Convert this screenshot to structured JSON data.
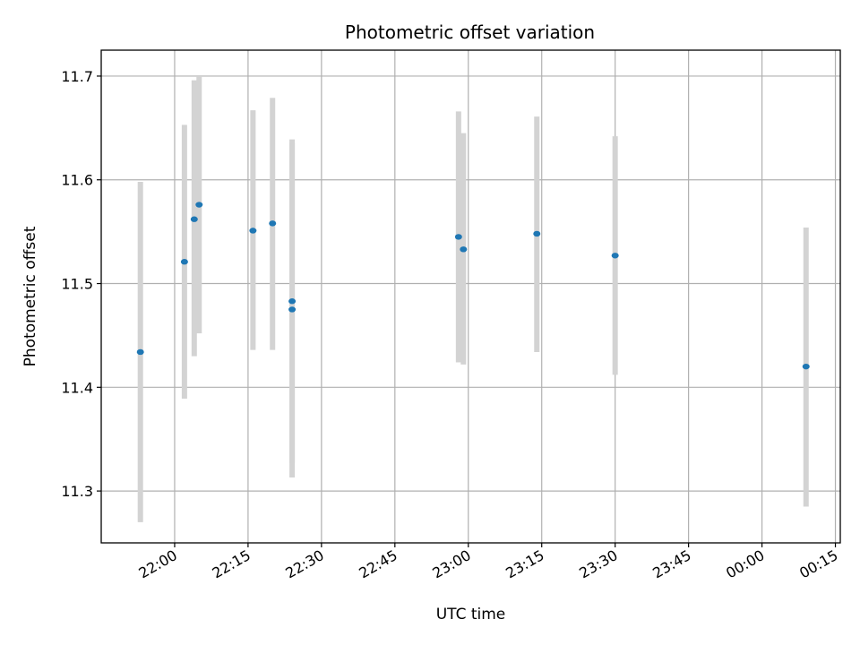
{
  "chart_data": {
    "type": "scatter",
    "title": "Photometric offset variation",
    "xlabel": "UTC time",
    "ylabel": "Photometric offset",
    "grid": true,
    "x_unit": "UTC time (HH:MM)",
    "xlim": [
      "21:45",
      "00:16"
    ],
    "ylim": [
      11.25,
      11.725
    ],
    "x_ticks": [
      "22:00",
      "22:15",
      "22:30",
      "22:45",
      "23:00",
      "23:15",
      "23:30",
      "23:45",
      "00:00",
      "00:15"
    ],
    "y_ticks": [
      "11.3",
      "11.4",
      "11.5",
      "11.6",
      "11.7"
    ],
    "marker_color": "#1f77b4",
    "errorbar_color": "#d3d3d3",
    "points": [
      {
        "x": "21:53",
        "y": 11.434,
        "y_low": 11.27,
        "y_high": 11.598
      },
      {
        "x": "22:02",
        "y": 11.521,
        "y_low": 11.389,
        "y_high": 11.653
      },
      {
        "x": "22:04",
        "y": 11.562,
        "y_low": 11.43,
        "y_high": 11.696
      },
      {
        "x": "22:05",
        "y": 11.576,
        "y_low": 11.452,
        "y_high": 11.7
      },
      {
        "x": "22:16",
        "y": 11.551,
        "y_low": 11.436,
        "y_high": 11.667
      },
      {
        "x": "22:20",
        "y": 11.558,
        "y_low": 11.436,
        "y_high": 11.679
      },
      {
        "x": "22:24",
        "y": 11.483,
        "y_low": 11.327,
        "y_high": 11.639
      },
      {
        "x": "22:24",
        "y": 11.475,
        "y_low": 11.313,
        "y_high": 11.636
      },
      {
        "x": "22:58",
        "y": 11.545,
        "y_low": 11.424,
        "y_high": 11.666
      },
      {
        "x": "22:59",
        "y": 11.533,
        "y_low": 11.422,
        "y_high": 11.645
      },
      {
        "x": "23:14",
        "y": 11.548,
        "y_low": 11.434,
        "y_high": 11.661
      },
      {
        "x": "23:30",
        "y": 11.527,
        "y_low": 11.412,
        "y_high": 11.642
      },
      {
        "x": "00:09",
        "y": 11.42,
        "y_low": 11.285,
        "y_high": 11.554
      }
    ]
  }
}
